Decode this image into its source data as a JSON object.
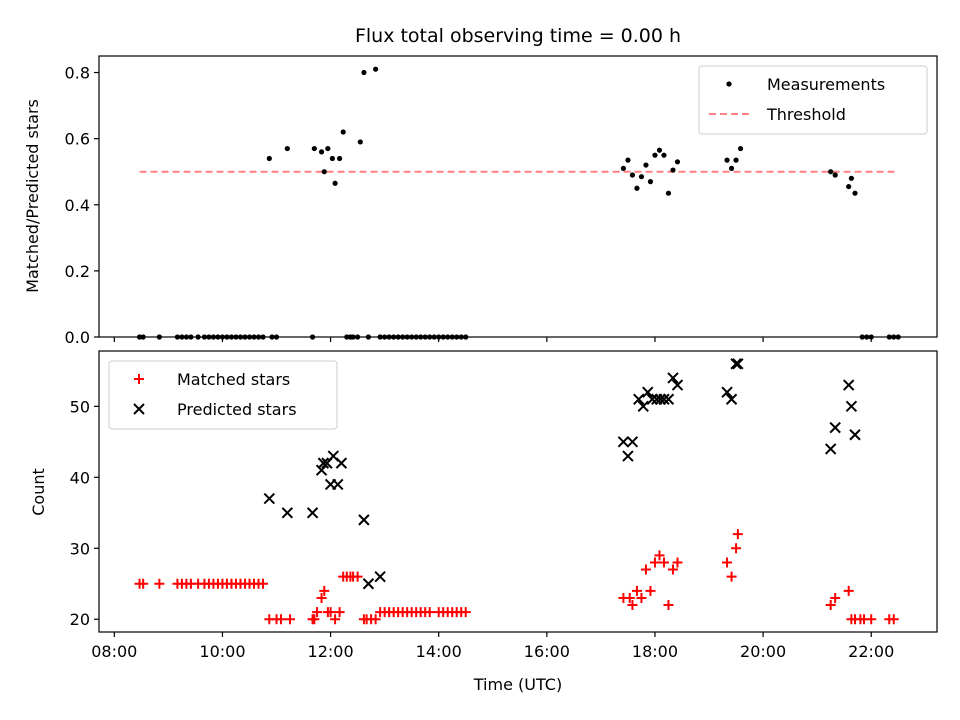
{
  "chart_data": [
    {
      "type": "scatter",
      "title": "Flux total observing time = 0.00 h",
      "xlabel": "",
      "ylabel": "Matched/Predicted stars",
      "xlim": [
        "07:43",
        "23:13"
      ],
      "ylim": [
        0,
        0.85
      ],
      "yticks": [
        0.0,
        0.2,
        0.4,
        0.6,
        0.8
      ],
      "ytick_labels": [
        "0.0",
        "0.2",
        "0.4",
        "0.6",
        "0.8"
      ],
      "grid": false,
      "legend_position": "top-right",
      "series": [
        {
          "name": "Measurements",
          "marker": "dot",
          "color": "#000000",
          "points": [
            [
              "08:28",
              0
            ],
            [
              "08:32",
              0
            ],
            [
              "08:50",
              0
            ],
            [
              "09:10",
              0
            ],
            [
              "09:15",
              0
            ],
            [
              "09:20",
              0
            ],
            [
              "09:25",
              0
            ],
            [
              "09:33",
              0
            ],
            [
              "09:40",
              0
            ],
            [
              "09:45",
              0
            ],
            [
              "09:50",
              0
            ],
            [
              "09:55",
              0
            ],
            [
              "10:00",
              0
            ],
            [
              "10:05",
              0
            ],
            [
              "10:10",
              0
            ],
            [
              "10:15",
              0
            ],
            [
              "10:20",
              0
            ],
            [
              "10:25",
              0
            ],
            [
              "10:30",
              0
            ],
            [
              "10:35",
              0
            ],
            [
              "10:40",
              0
            ],
            [
              "10:45",
              0
            ],
            [
              "10:55",
              0
            ],
            [
              "11:00",
              0
            ],
            [
              "10:52",
              0.54
            ],
            [
              "11:12",
              0.57
            ],
            [
              "11:40",
              0.0
            ],
            [
              "11:42",
              0.57
            ],
            [
              "11:50",
              0.56
            ],
            [
              "11:53",
              0.5
            ],
            [
              "11:57",
              0.57
            ],
            [
              "12:02",
              0.54
            ],
            [
              "12:05",
              0.465
            ],
            [
              "12:10",
              0.54
            ],
            [
              "12:14",
              0.62
            ],
            [
              "12:18",
              0
            ],
            [
              "12:22",
              0
            ],
            [
              "12:25",
              0
            ],
            [
              "12:30",
              0
            ],
            [
              "12:33",
              0.59
            ],
            [
              "12:37",
              0.8
            ],
            [
              "12:42",
              0
            ],
            [
              "12:50",
              0.81
            ],
            [
              "12:55",
              0
            ],
            [
              "13:00",
              0
            ],
            [
              "13:05",
              0
            ],
            [
              "13:10",
              0
            ],
            [
              "13:15",
              0
            ],
            [
              "13:20",
              0
            ],
            [
              "13:25",
              0
            ],
            [
              "13:30",
              0
            ],
            [
              "13:35",
              0
            ],
            [
              "13:40",
              0
            ],
            [
              "13:45",
              0
            ],
            [
              "13:50",
              0
            ],
            [
              "13:55",
              0
            ],
            [
              "14:00",
              0
            ],
            [
              "14:05",
              0
            ],
            [
              "14:10",
              0
            ],
            [
              "14:15",
              0
            ],
            [
              "14:20",
              0
            ],
            [
              "14:25",
              0
            ],
            [
              "14:30",
              0
            ],
            [
              "17:25",
              0.51
            ],
            [
              "17:30",
              0.535
            ],
            [
              "17:35",
              0.49
            ],
            [
              "17:40",
              0.45
            ],
            [
              "17:45",
              0.485
            ],
            [
              "17:50",
              0.52
            ],
            [
              "17:55",
              0.47
            ],
            [
              "18:00",
              0.55
            ],
            [
              "18:05",
              0.565
            ],
            [
              "18:10",
              0.55
            ],
            [
              "18:15",
              0.435
            ],
            [
              "18:20",
              0.505
            ],
            [
              "18:25",
              0.53
            ],
            [
              "19:20",
              0.535
            ],
            [
              "19:25",
              0.51
            ],
            [
              "19:30",
              0.535
            ],
            [
              "19:35",
              0.57
            ],
            [
              "21:15",
              0.5
            ],
            [
              "21:20",
              0.49
            ],
            [
              "21:35",
              0.455
            ],
            [
              "21:38",
              0.48
            ],
            [
              "21:42",
              0.435
            ],
            [
              "21:50",
              0
            ],
            [
              "21:55",
              0
            ],
            [
              "22:00",
              0
            ],
            [
              "22:20",
              0
            ],
            [
              "22:25",
              0
            ],
            [
              "22:30",
              0
            ]
          ]
        },
        {
          "name": "Threshold",
          "marker": "dashed-line",
          "color": "#ff8080",
          "points": [
            [
              "08:28",
              0.5
            ],
            [
              "22:30",
              0.5
            ]
          ]
        }
      ]
    },
    {
      "type": "scatter",
      "title": "",
      "xlabel": "Time (UTC)",
      "ylabel": "Count",
      "xlim": [
        "07:43",
        "23:13"
      ],
      "ylim": [
        18.2,
        57.8
      ],
      "yticks": [
        20,
        30,
        40,
        50
      ],
      "ytick_labels": [
        "20",
        "30",
        "40",
        "50"
      ],
      "xticks": [
        "08:00",
        "10:00",
        "12:00",
        "14:00",
        "16:00",
        "18:00",
        "20:00",
        "22:00"
      ],
      "grid": false,
      "legend_position": "top-left",
      "series": [
        {
          "name": "Matched stars",
          "marker": "plus",
          "color": "#ff0000",
          "points": [
            [
              "08:28",
              25
            ],
            [
              "08:32",
              25
            ],
            [
              "08:50",
              25
            ],
            [
              "09:10",
              25
            ],
            [
              "09:15",
              25
            ],
            [
              "09:20",
              25
            ],
            [
              "09:25",
              25
            ],
            [
              "09:33",
              25
            ],
            [
              "09:40",
              25
            ],
            [
              "09:45",
              25
            ],
            [
              "09:50",
              25
            ],
            [
              "09:55",
              25
            ],
            [
              "10:00",
              25
            ],
            [
              "10:05",
              25
            ],
            [
              "10:10",
              25
            ],
            [
              "10:15",
              25
            ],
            [
              "10:20",
              25
            ],
            [
              "10:25",
              25
            ],
            [
              "10:30",
              25
            ],
            [
              "10:35",
              25
            ],
            [
              "10:40",
              25
            ],
            [
              "10:45",
              25
            ],
            [
              "10:52",
              20
            ],
            [
              "11:00",
              20
            ],
            [
              "11:05",
              20
            ],
            [
              "11:15",
              20
            ],
            [
              "11:40",
              20
            ],
            [
              "11:42",
              20
            ],
            [
              "11:45",
              21
            ],
            [
              "11:50",
              23
            ],
            [
              "11:53",
              24
            ],
            [
              "11:57",
              21
            ],
            [
              "12:00",
              21
            ],
            [
              "12:05",
              20
            ],
            [
              "12:10",
              21
            ],
            [
              "12:14",
              26
            ],
            [
              "12:18",
              26
            ],
            [
              "12:22",
              26
            ],
            [
              "12:25",
              26
            ],
            [
              "12:30",
              26
            ],
            [
              "12:37",
              20
            ],
            [
              "12:40",
              20
            ],
            [
              "12:45",
              20
            ],
            [
              "12:50",
              20
            ],
            [
              "12:55",
              21
            ],
            [
              "13:00",
              21
            ],
            [
              "13:05",
              21
            ],
            [
              "13:10",
              21
            ],
            [
              "13:15",
              21
            ],
            [
              "13:20",
              21
            ],
            [
              "13:25",
              21
            ],
            [
              "13:30",
              21
            ],
            [
              "13:35",
              21
            ],
            [
              "13:40",
              21
            ],
            [
              "13:45",
              21
            ],
            [
              "13:50",
              21
            ],
            [
              "14:00",
              21
            ],
            [
              "14:05",
              21
            ],
            [
              "14:10",
              21
            ],
            [
              "14:15",
              21
            ],
            [
              "14:20",
              21
            ],
            [
              "14:25",
              21
            ],
            [
              "14:30",
              21
            ],
            [
              "17:25",
              23
            ],
            [
              "17:32",
              23
            ],
            [
              "17:35",
              22
            ],
            [
              "17:40",
              24
            ],
            [
              "17:45",
              23
            ],
            [
              "17:50",
              27
            ],
            [
              "17:55",
              24
            ],
            [
              "18:00",
              28
            ],
            [
              "18:05",
              29
            ],
            [
              "18:10",
              28
            ],
            [
              "18:15",
              22
            ],
            [
              "18:20",
              27
            ],
            [
              "18:25",
              28
            ],
            [
              "19:20",
              28
            ],
            [
              "19:25",
              26
            ],
            [
              "19:30",
              30
            ],
            [
              "19:32",
              32
            ],
            [
              "21:15",
              22
            ],
            [
              "21:20",
              23
            ],
            [
              "21:35",
              24
            ],
            [
              "21:38",
              20
            ],
            [
              "21:42",
              20
            ],
            [
              "21:48",
              20
            ],
            [
              "21:52",
              20
            ],
            [
              "22:00",
              20
            ],
            [
              "22:20",
              20
            ],
            [
              "22:25",
              20
            ]
          ]
        },
        {
          "name": "Predicted stars",
          "marker": "x",
          "color": "#000000",
          "points": [
            [
              "10:52",
              37
            ],
            [
              "11:12",
              35
            ],
            [
              "11:40",
              35
            ],
            [
              "11:50",
              41
            ],
            [
              "11:52",
              42
            ],
            [
              "11:56",
              42
            ],
            [
              "12:00",
              39
            ],
            [
              "12:03",
              43
            ],
            [
              "12:08",
              39
            ],
            [
              "12:12",
              42
            ],
            [
              "12:37",
              34
            ],
            [
              "12:42",
              25
            ],
            [
              "12:55",
              26
            ],
            [
              "17:25",
              45
            ],
            [
              "17:30",
              43
            ],
            [
              "17:35",
              45
            ],
            [
              "17:42",
              51
            ],
            [
              "17:47",
              50
            ],
            [
              "17:52",
              52
            ],
            [
              "17:57",
              51
            ],
            [
              "18:02",
              51
            ],
            [
              "18:06",
              51
            ],
            [
              "18:10",
              51
            ],
            [
              "18:15",
              51
            ],
            [
              "18:20",
              54
            ],
            [
              "18:25",
              53
            ],
            [
              "19:20",
              52
            ],
            [
              "19:25",
              51
            ],
            [
              "19:30",
              56
            ],
            [
              "19:32",
              56
            ],
            [
              "21:15",
              44
            ],
            [
              "21:20",
              47
            ],
            [
              "21:35",
              53
            ],
            [
              "21:38",
              50
            ],
            [
              "21:42",
              46
            ]
          ]
        }
      ]
    }
  ]
}
